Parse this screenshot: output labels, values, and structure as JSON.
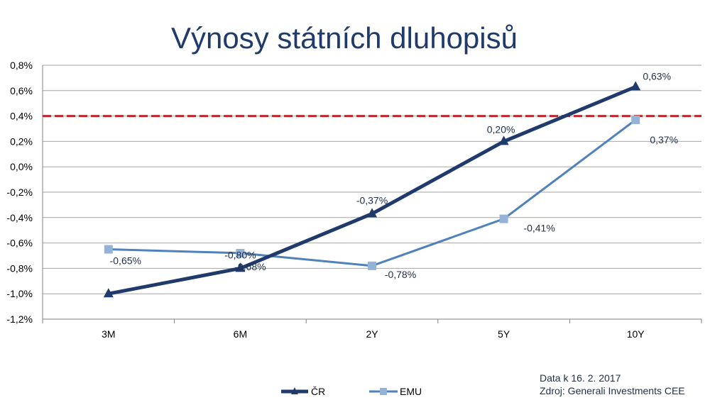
{
  "chart_data": {
    "type": "line",
    "title": "Výnosy státních dluhopisů",
    "categories": [
      "3M",
      "6M",
      "2Y",
      "5Y",
      "10Y"
    ],
    "ylim": [
      -1.2,
      0.8
    ],
    "yticks": [
      0.8,
      0.6,
      0.4,
      0.2,
      0.0,
      -0.2,
      -0.4,
      -0.6,
      -0.8,
      -1.0,
      -1.2
    ],
    "ytick_labels": [
      "0,8%",
      "0,6%",
      "0,4%",
      "0,2%",
      "0,0%",
      "-0,2%",
      "-0,4%",
      "-0,6%",
      "-0,8%",
      "-1,0%",
      "-1,2%"
    ],
    "grid": true,
    "series": [
      {
        "name": "ČR",
        "values": [
          -1.0,
          -0.8,
          -0.37,
          0.2,
          0.63
        ],
        "labels": [
          "",
          "-0,80%",
          "-0,37%",
          "0,20%",
          "0,63%"
        ],
        "color": "#1f3a6b",
        "marker": "triangle"
      },
      {
        "name": "EMU",
        "values": [
          -0.65,
          -0.68,
          -0.78,
          -0.41,
          0.37
        ],
        "labels": [
          "-0,65%",
          "-0,68%",
          "-0,78%",
          "-0,41%",
          "0,37%"
        ],
        "color": "#4f81bd",
        "marker": "square",
        "marker_color": "#95b3d7"
      }
    ],
    "reference_line": {
      "value": 0.4,
      "color": "#c0262d",
      "style": "dashed"
    },
    "legend_position": "bottom"
  },
  "source": {
    "date_line": "Data k 16. 2. 2017",
    "source_line": "Zdroj: Generali Investments CEE"
  }
}
